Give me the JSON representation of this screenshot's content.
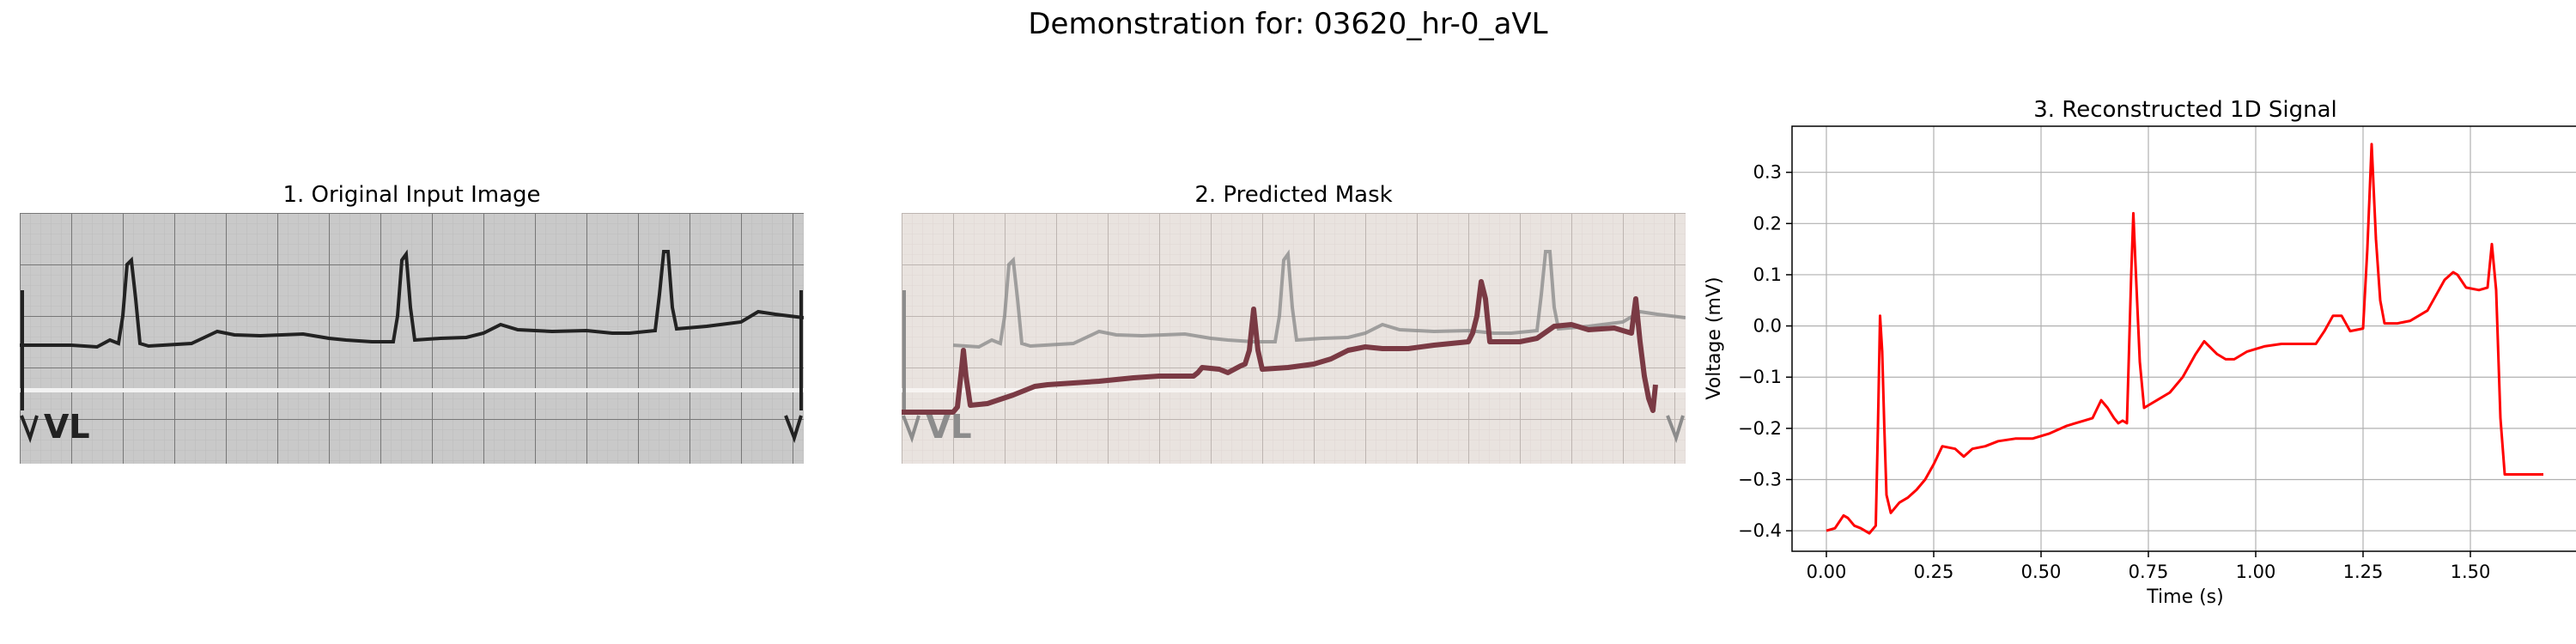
{
  "figure": {
    "suptitle": "Demonstration for: 03620_hr-0_aVL"
  },
  "panels": {
    "original": {
      "title": "1. Original Input Image",
      "lead_label": "VL",
      "lead_label_right": "V"
    },
    "mask": {
      "title": "2. Predicted Mask",
      "lead_label": "VL"
    }
  },
  "colors": {
    "signal": "#ff0000",
    "mask_overlay": "#7a3a44",
    "ecg_trace": "#222222"
  },
  "chart_data": {
    "type": "line",
    "title": "3. Reconstructed 1D Signal",
    "xlabel": "Time (s)",
    "ylabel": "Voltage (mV)",
    "xlim": [
      -0.08,
      1.75
    ],
    "ylim": [
      -0.44,
      0.39
    ],
    "xticks": [
      "0.00",
      "0.25",
      "0.50",
      "0.75",
      "1.00",
      "1.25",
      "1.50"
    ],
    "yticks": [
      "−0.4",
      "−0.3",
      "−0.2",
      "−0.1",
      "0.0",
      "0.1",
      "0.2",
      "0.3"
    ],
    "grid": true,
    "series": [
      {
        "color": "#ff0000",
        "x": [
          0.0,
          0.02,
          0.04,
          0.05,
          0.065,
          0.08,
          0.1,
          0.115,
          0.12,
          0.125,
          0.13,
          0.135,
          0.14,
          0.15,
          0.16,
          0.17,
          0.19,
          0.21,
          0.23,
          0.25,
          0.27,
          0.3,
          0.32,
          0.34,
          0.37,
          0.4,
          0.44,
          0.48,
          0.52,
          0.56,
          0.6,
          0.62,
          0.64,
          0.655,
          0.67,
          0.68,
          0.69,
          0.7,
          0.71,
          0.715,
          0.72,
          0.73,
          0.74,
          0.75,
          0.77,
          0.8,
          0.83,
          0.86,
          0.88,
          0.91,
          0.93,
          0.95,
          0.98,
          1.02,
          1.06,
          1.1,
          1.14,
          1.16,
          1.18,
          1.2,
          1.22,
          1.25,
          1.26,
          1.27,
          1.28,
          1.29,
          1.3,
          1.33,
          1.36,
          1.4,
          1.42,
          1.44,
          1.46,
          1.47,
          1.49,
          1.52,
          1.54,
          1.55,
          1.56,
          1.57,
          1.58,
          1.6,
          1.62,
          1.67
        ],
        "y": [
          -0.4,
          -0.395,
          -0.37,
          -0.375,
          -0.39,
          -0.395,
          -0.405,
          -0.39,
          -0.2,
          0.02,
          -0.05,
          -0.2,
          -0.33,
          -0.365,
          -0.355,
          -0.345,
          -0.335,
          -0.32,
          -0.3,
          -0.27,
          -0.235,
          -0.24,
          -0.255,
          -0.24,
          -0.235,
          -0.225,
          -0.22,
          -0.22,
          -0.21,
          -0.195,
          -0.185,
          -0.18,
          -0.145,
          -0.16,
          -0.18,
          -0.19,
          -0.185,
          -0.19,
          0.1,
          0.22,
          0.12,
          -0.07,
          -0.16,
          -0.155,
          -0.145,
          -0.13,
          -0.1,
          -0.055,
          -0.03,
          -0.055,
          -0.065,
          -0.065,
          -0.05,
          -0.04,
          -0.035,
          -0.035,
          -0.035,
          -0.01,
          0.02,
          0.02,
          -0.01,
          -0.005,
          0.15,
          0.355,
          0.17,
          0.05,
          0.005,
          0.005,
          0.01,
          0.03,
          0.06,
          0.09,
          0.105,
          0.1,
          0.075,
          0.07,
          0.075,
          0.16,
          0.07,
          -0.18,
          -0.29,
          -0.29,
          -0.29,
          -0.29
        ]
      }
    ]
  }
}
